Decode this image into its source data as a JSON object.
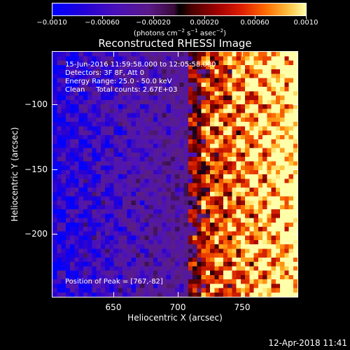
{
  "colorbar": {
    "ticks": [
      "−0.0010",
      "−0.00060",
      "−0.00020",
      "0.00020",
      "0.00060",
      "0.0010"
    ],
    "units_prefix": "(photons cm",
    "units_exp1": "−2",
    "units_mid": " s",
    "units_exp2": "−1",
    "units_mid2": " asec",
    "units_exp3": "−2",
    "units_suffix": ")"
  },
  "title": "Reconstructed RHESSI Image",
  "info": {
    "time_range": "15-Jun-2016 11:59:58.000 to 12:05:58.000",
    "detectors": "Detectors: 3F 8F, Att 0",
    "energy_range": "Energy Range: 25.0 - 50.0 keV",
    "method_counts": "Clean     Total counts: 2.67E+03",
    "peak_position": "Position of Peak = [767,-82]"
  },
  "axes": {
    "xlabel": "Heliocentric X (arcsec)",
    "ylabel": "Heliocentric Y (arcsec)",
    "xticks": [
      "650",
      "700",
      "750"
    ],
    "yticks": [
      "−100",
      "−150",
      "−200"
    ]
  },
  "timestamp": "12-Apr-2018 11:41",
  "colors": {
    "background": "#000000",
    "foreground": "#ffffff"
  }
}
